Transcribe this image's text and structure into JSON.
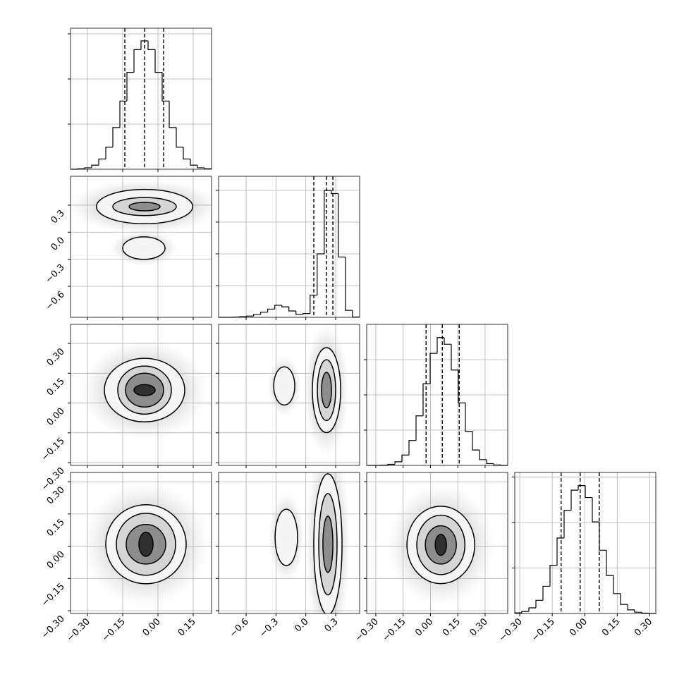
{
  "chart_data": {
    "type": "corner",
    "params": [
      {
        "xlim": [
          -0.372,
          0.228
        ],
        "ticks": [
          {
            "value": -0.3,
            "label": "−0.30"
          },
          {
            "value": -0.15,
            "label": "−0.15"
          },
          {
            "value": 0,
            "label": "0.00"
          },
          0.15
        ],
        "hist": {
          "bins": [
            -0.372,
            -0.342,
            -0.312,
            -0.282,
            -0.252,
            -0.222,
            -0.192,
            -0.162,
            -0.132,
            -0.102,
            -0.072,
            -0.042,
            -0.012,
            0.018,
            0.048,
            0.078,
            0.108,
            0.138,
            0.168,
            0.198,
            0.228
          ],
          "counts": [
            0,
            10,
            32,
            90,
            226,
            490,
            924,
            1511,
            2147,
            2650,
            2844,
            2650,
            2147,
            1511,
            924,
            490,
            226,
            90,
            32,
            10
          ],
          "ylim": [
            0,
            3125
          ],
          "yticks": [
            1000,
            2000,
            3000
          ],
          "quantiles": [
            -0.141,
            -0.057,
            0.024
          ]
        }
      },
      {
        "xlim": [
          -0.877,
          0.541
        ],
        "ylim": [
          -0.944,
          0.62
        ],
        "ticks": [
          {
            "value": -0.6,
            "label": "−0.6"
          },
          {
            "value": -0.3,
            "label": "−0.3"
          },
          {
            "value": 0,
            "label": "0.0"
          },
          0.3
        ],
        "hist": {
          "bins": [
            -0.88,
            -0.809,
            -0.738,
            -0.667,
            -0.596,
            -0.525,
            -0.454,
            -0.383,
            -0.312,
            -0.241,
            -0.17,
            -0.099,
            -0.028,
            0.043,
            0.114,
            0.185,
            0.256,
            0.327,
            0.398,
            0.469,
            0.54
          ],
          "counts": [
            0,
            0,
            5,
            20,
            40,
            90,
            160,
            260,
            380,
            330,
            200,
            90,
            120,
            700,
            2000,
            4000,
            3900,
            1900,
            220,
            10
          ],
          "ylim": [
            0,
            4444
          ],
          "yticks": [
            1000,
            2000,
            3000,
            4000
          ],
          "quantiles": [
            0.08,
            0.208,
            0.272
          ]
        }
      },
      {
        "xlim": [
          -0.35,
          0.424
        ],
        "ylim": [
          -0.314,
          0.396
        ],
        "ticks": [
          {
            "value": -0.3,
            "label": "−0.30"
          },
          {
            "value": -0.15,
            "label": "−0.15"
          },
          {
            "value": 0,
            "label": "0.00"
          },
          0.15,
          {
            "value": 0.3,
            "label": "0.30"
          }
        ],
        "hist": {
          "bins": [
            -0.35,
            -0.3113,
            -0.2726,
            -0.2339,
            -0.1952,
            -0.1565,
            -0.1178,
            -0.0791,
            -0.0404,
            -0.0017,
            0.037,
            0.0757,
            0.1144,
            0.1531,
            0.1918,
            0.2305,
            0.2692,
            0.3079,
            0.3466,
            0.3853,
            0.424
          ],
          "counts": [
            0,
            0,
            7,
            30,
            102,
            295,
            706,
            1405,
            2315,
            3178,
            3625,
            3436,
            2705,
            1773,
            965,
            437,
            164,
            51,
            13,
            0
          ],
          "ylim": [
            0,
            4000
          ],
          "yticks": [
            1000,
            2000,
            3000
          ],
          "quantiles": [
            -0.024,
            0.065,
            0.158
          ]
        }
      },
      {
        "xlim": [
          -0.323,
          0.328
        ],
        "ylim": [
          -0.313,
          0.343
        ],
        "ticks": [
          {
            "value": -0.3,
            "label": "−0.30"
          },
          {
            "value": -0.15,
            "label": "−0.15"
          },
          {
            "value": 0,
            "label": "0.00"
          },
          0.15,
          {
            "value": 0.3,
            "label": "0.30"
          }
        ],
        "hist": {
          "bins": [
            -0.323,
            -0.2905,
            -0.2579,
            -0.2254,
            -0.1928,
            -0.1603,
            -0.1277,
            -0.0952,
            -0.0626,
            -0.0301,
            0.0025,
            0.035,
            0.0676,
            0.1001,
            0.1327,
            0.1652,
            0.1978,
            0.2303,
            0.2629,
            0.2954,
            0.328
          ],
          "counts": [
            14,
            45,
            124,
            290,
            598,
            1058,
            1658,
            2267,
            2710,
            2811,
            2549,
            2013,
            1390,
            835,
            437,
            200,
            79,
            28,
            8,
            3
          ],
          "ylim": [
            0,
            3100
          ],
          "yticks": [
            1000,
            2000,
            3000
          ],
          "quantiles": [
            -0.109,
            -0.021,
            0.067
          ]
        }
      }
    ],
    "contours": [
      {
        "x": 0,
        "y": 1,
        "blobs": [
          {
            "cx": -0.057,
            "cy": 0.284,
            "rx": [
              0.205,
              0.135,
              0.066
            ],
            "ry": [
              0.19,
              0.1,
              0.047
            ]
          },
          {
            "cx": -0.06,
            "cy": -0.177,
            "rx": [
              0.09
            ],
            "ry": [
              0.125
            ]
          }
        ]
      },
      {
        "x": 0,
        "y": 2,
        "blobs": [
          {
            "cx": -0.057,
            "cy": 0.065,
            "rx": [
              0.171,
              0.114,
              0.081,
              0.045
            ],
            "ry": [
              0.16,
              0.121,
              0.085,
              0.028
            ]
          }
        ]
      },
      {
        "x": 1,
        "y": 2,
        "blobs": [
          {
            "cx": -0.217,
            "cy": 0.086,
            "rx": [
              0.106
            ],
            "ry": [
              0.096
            ]
          },
          {
            "cx": 0.208,
            "cy": 0.065,
            "rx": [
              0.142,
              0.092,
              0.05
            ],
            "ry": [
              0.214,
              0.153,
              0.089
            ]
          }
        ]
      },
      {
        "x": 0,
        "y": 3,
        "blobs": [
          {
            "cx": -0.051,
            "cy": 0.009,
            "rx": [
              0.171,
              0.126,
              0.084,
              0.03
            ],
            "ry": [
              0.184,
              0.144,
              0.092,
              0.056
            ]
          }
        ]
      },
      {
        "x": 1,
        "y": 3,
        "blobs": [
          {
            "cx": -0.196,
            "cy": 0.041,
            "rx": [
              0.113
            ],
            "ry": [
              0.131
            ]
          },
          {
            "cx": 0.222,
            "cy": 0.009,
            "rx": [
              0.142,
              0.092,
              0.05
            ],
            "ry": [
              0.328,
              0.236,
              0.131
            ]
          }
        ]
      },
      {
        "x": 2,
        "y": 3,
        "blobs": [
          {
            "cx": 0.057,
            "cy": 0.006,
            "rx": [
              0.186,
              0.132,
              0.085,
              0.031
            ],
            "ry": [
              0.18,
              0.138,
              0.089,
              0.049
            ]
          }
        ]
      }
    ]
  }
}
